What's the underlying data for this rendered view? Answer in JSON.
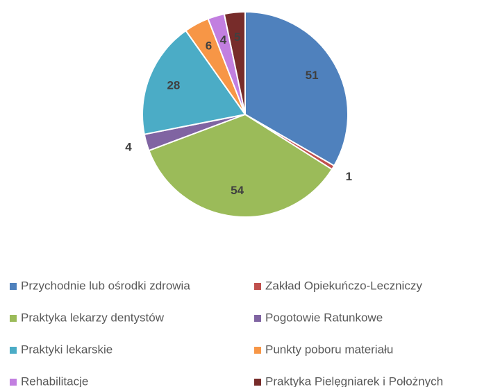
{
  "chart_data": {
    "type": "pie",
    "categories": [
      "Przychodnie lub ośrodki zdrowia",
      "Zakład Opiekuńczo-Leczniczy",
      "Praktyka lekarzy dentystów",
      "Pogotowie Ratunkowe",
      "Praktyki lekarskie",
      "Punkty poboru materiału",
      "Rehabilitacje",
      "Praktyka Pielęgniarek i Położnych"
    ],
    "values": [
      51,
      1,
      54,
      4,
      28,
      6,
      4,
      5
    ],
    "colors": [
      "#4f81bd",
      "#c0504d",
      "#9bbb59",
      "#8064a2",
      "#4bacc6",
      "#f79646",
      "#c27fe0",
      "#772c2a"
    ],
    "legend": "bottom"
  }
}
